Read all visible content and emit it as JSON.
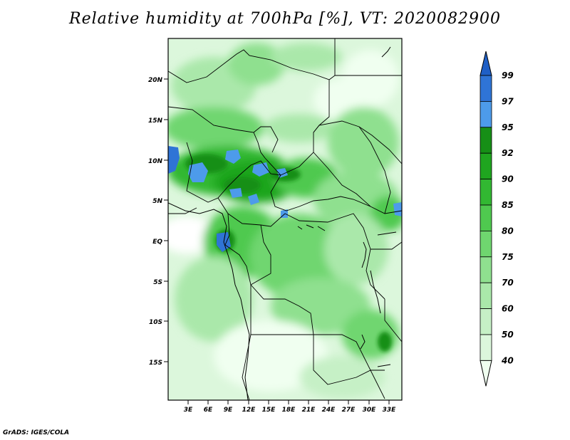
{
  "title": "Relative humidity at 700hPa [%], VT: 2020082900",
  "credit": "GrADS: IGES/COLA",
  "map": {
    "lat_labels": [
      "20N",
      "15N",
      "10N",
      "5N",
      "EQ",
      "5S",
      "10S",
      "15S"
    ],
    "lon_labels": [
      "3E",
      "6E",
      "9E",
      "12E",
      "15E",
      "18E",
      "21E",
      "24E",
      "27E",
      "30E",
      "33E"
    ],
    "lat_range": [
      -20,
      25
    ],
    "lon_range": [
      0,
      35
    ]
  },
  "colorbar": {
    "levels": [
      "40",
      "50",
      "60",
      "70",
      "75",
      "80",
      "85",
      "90",
      "92",
      "95",
      "97",
      "99"
    ],
    "colors": [
      "#f0fff0",
      "#dcf7dc",
      "#c6f0c6",
      "#aae8aa",
      "#8fe08f",
      "#6fd66f",
      "#4fc94f",
      "#32b832",
      "#1fa51f",
      "#168f16",
      "#4d9bea",
      "#2f74d6",
      "#1f5fc6"
    ]
  },
  "legend": {
    "palette": {
      "low": "#f0fff0",
      "mid": "#6fd66f",
      "high": "#168f16",
      "saturated": "#2f74d6"
    }
  }
}
